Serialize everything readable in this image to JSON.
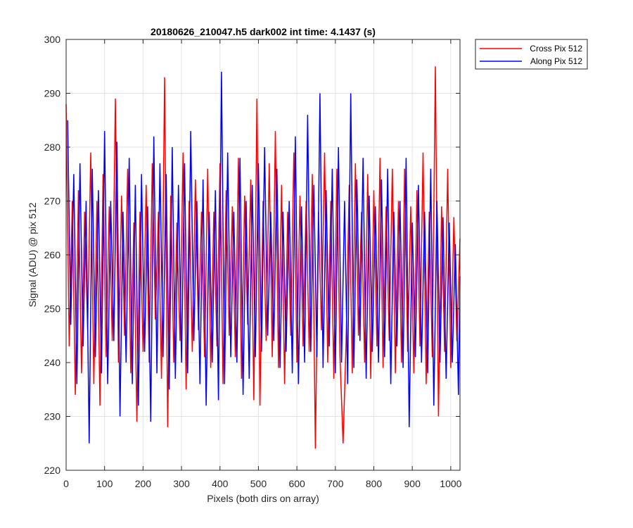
{
  "chart_data": {
    "type": "line",
    "title": "20180626_210047.h5  dark002   int time: 4.1437 (s)",
    "xlabel": "Pixels (both dirs on array)",
    "ylabel": "Signal (ADU) @ pix 512",
    "xlim": [
      0,
      1024
    ],
    "ylim": [
      220,
      300
    ],
    "xticks": [
      0,
      100,
      200,
      300,
      400,
      500,
      600,
      700,
      800,
      900,
      1000
    ],
    "yticks": [
      220,
      230,
      240,
      250,
      260,
      270,
      280,
      290,
      300
    ],
    "grid": true,
    "legend_position": "outside-top-right",
    "series": [
      {
        "name": "Cross Pix 512",
        "color": "#ff0000",
        "x_start": 0,
        "x_step": 8,
        "values": [
          288,
          243,
          270,
          234,
          272,
          238,
          268,
          246,
          279,
          236,
          270,
          232,
          275,
          241,
          269,
          244,
          289,
          240,
          271,
          245,
          276,
          238,
          266,
          229,
          268,
          242,
          273,
          240,
          277,
          248,
          268,
          237,
          293,
          228,
          271,
          240,
          266,
          244,
          279,
          235,
          270,
          242,
          274,
          246,
          268,
          241,
          276,
          239,
          268,
          243,
          277,
          236,
          272,
          245,
          269,
          241,
          278,
          237,
          271,
          247,
          274,
          233,
          289,
          232,
          270,
          244,
          277,
          241,
          283,
          239,
          273,
          236,
          268,
          245,
          279,
          240,
          271,
          243,
          270,
          242,
          275,
          224,
          268,
          246,
          279,
          240,
          270,
          237,
          276,
          241,
          225,
          244,
          273,
          238,
          277,
          245,
          268,
          240,
          275,
          237,
          272,
          243,
          278,
          239,
          269,
          244,
          276,
          238,
          270,
          240,
          276,
          242,
          269,
          238,
          272,
          243,
          279,
          236,
          268,
          241,
          295,
          230,
          269,
          242,
          276,
          239,
          267,
          244,
          263
        ]
      },
      {
        "name": "Along Pix 512",
        "color": "#0000ff",
        "x_start": 4,
        "x_step": 8,
        "values": [
          285,
          247,
          275,
          236,
          277,
          243,
          270,
          225,
          276,
          241,
          272,
          238,
          283,
          236,
          270,
          244,
          281,
          230,
          268,
          240,
          278,
          236,
          273,
          232,
          275,
          242,
          269,
          229,
          282,
          238,
          277,
          241,
          275,
          235,
          280,
          237,
          273,
          240,
          277,
          238,
          283,
          244,
          270,
          236,
          274,
          232,
          268,
          240,
          272,
          233,
          294,
          236,
          279,
          241,
          268,
          240,
          278,
          234,
          270,
          237,
          273,
          241,
          277,
          242,
          280,
          245,
          268,
          244,
          276,
          239,
          268,
          242,
          270,
          238,
          282,
          236,
          269,
          240,
          286,
          242,
          273,
          241,
          290,
          239,
          272,
          243,
          276,
          238,
          280,
          240,
          270,
          236,
          290,
          239,
          274,
          244,
          278,
          237,
          271,
          242,
          269,
          240,
          274,
          241,
          276,
          236,
          268,
          243,
          270,
          239,
          278,
          228,
          266,
          241,
          273,
          240,
          268,
          238,
          276,
          232,
          270,
          240,
          267,
          237,
          266,
          240,
          262,
          234,
          256
        ]
      }
    ]
  }
}
